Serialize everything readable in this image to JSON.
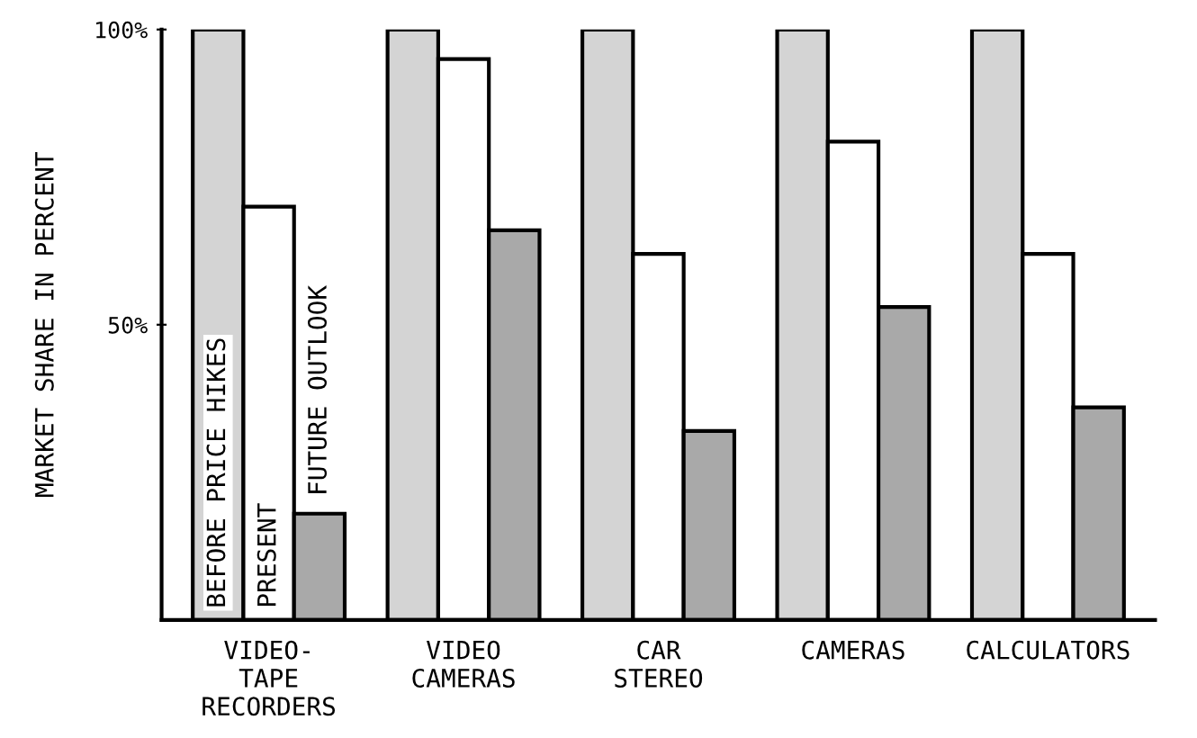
{
  "chart_data": {
    "type": "bar",
    "ylabel": "MARKET SHARE IN PERCENT",
    "categories": [
      "VIDEO-\nTAPE\nRECORDERS",
      "VIDEO\nCAMERAS",
      "CAR\nSTEREO",
      "CAMERAS",
      "CALCULATORS"
    ],
    "series": [
      {
        "name": "BEFORE PRICE HIKES",
        "color": "#d4d4d4",
        "values": [
          100,
          100,
          100,
          100,
          100
        ]
      },
      {
        "name": "PRESENT",
        "color": "#ffffff",
        "values": [
          70,
          95,
          62,
          81,
          62
        ]
      },
      {
        "name": "FUTURE OUTLOOK",
        "color": "#a9a9a9",
        "values": [
          18,
          66,
          32,
          53,
          36
        ]
      }
    ],
    "ylim": [
      0,
      100
    ],
    "yticks": [
      {
        "value": 50,
        "label": "50%"
      },
      {
        "value": 100,
        "label": "100%"
      }
    ],
    "grid": false
  }
}
